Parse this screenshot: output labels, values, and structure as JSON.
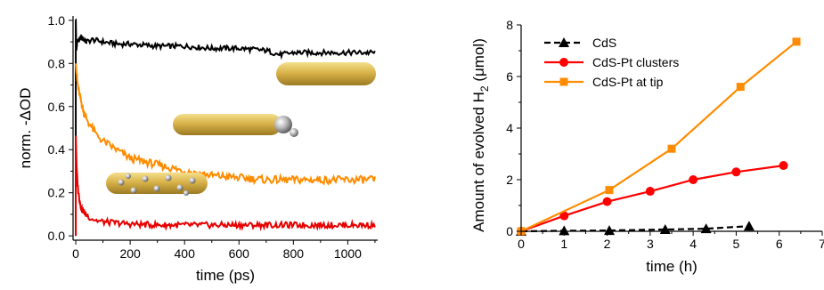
{
  "chart_data": [
    {
      "type": "line",
      "xlabel": "time (ps)",
      "ylabel": "norm. -ΔOD",
      "xlim": [
        -10,
        1110
      ],
      "ylim": [
        -0.02,
        1.02
      ],
      "xticks": [
        "0",
        "200",
        "400",
        "600",
        "800",
        "1000"
      ],
      "yticks": [
        "0.0",
        "0.2",
        "0.4",
        "0.6",
        "0.8",
        "1.0"
      ],
      "series": [
        {
          "color": "#000000",
          "x": [
            0,
            2,
            5,
            10,
            20,
            40,
            60,
            100,
            150,
            200,
            300,
            400,
            500,
            600,
            700,
            750,
            800,
            850,
            900,
            1000,
            1100
          ],
          "y": [
            1.0,
            0.86,
            0.9,
            0.91,
            0.92,
            0.9,
            0.91,
            0.9,
            0.89,
            0.89,
            0.88,
            0.88,
            0.87,
            0.87,
            0.86,
            0.84,
            0.85,
            0.85,
            0.85,
            0.85,
            0.85
          ]
        },
        {
          "color": "#ff8c00",
          "x": [
            0,
            5,
            10,
            20,
            30,
            50,
            75,
            100,
            150,
            200,
            300,
            400,
            500,
            600,
            700,
            800,
            900,
            1000,
            1100
          ],
          "y": [
            0.8,
            0.72,
            0.68,
            0.62,
            0.57,
            0.52,
            0.47,
            0.44,
            0.4,
            0.36,
            0.33,
            0.3,
            0.28,
            0.27,
            0.26,
            0.26,
            0.26,
            0.26,
            0.26
          ]
        },
        {
          "color": "#e60000",
          "x": [
            0,
            3,
            6,
            10,
            15,
            20,
            30,
            40,
            60,
            80,
            100,
            150,
            200,
            300,
            400,
            500,
            600,
            700,
            800,
            900,
            1000,
            1100
          ],
          "y": [
            0.46,
            0.32,
            0.25,
            0.2,
            0.16,
            0.13,
            0.11,
            0.095,
            0.08,
            0.07,
            0.065,
            0.06,
            0.055,
            0.05,
            0.05,
            0.05,
            0.05,
            0.05,
            0.05,
            0.05,
            0.05,
            0.05
          ]
        }
      ]
    },
    {
      "type": "line",
      "xlabel": "time (h)",
      "ylabel": "Amount of evolved H",
      "ylabel_sub": "2",
      "ylabel_unit": " (μmol)",
      "xlim": [
        0,
        7
      ],
      "ylim": [
        0,
        8
      ],
      "xticks": [
        "0",
        "1",
        "2",
        "3",
        "4",
        "5",
        "6",
        "7"
      ],
      "yticks": [
        "0",
        "2",
        "4",
        "6",
        "8"
      ],
      "legend_position": "top-left",
      "series": [
        {
          "name": "CdS",
          "color": "#000000",
          "marker": "triangle",
          "dash": true,
          "x": [
            0,
            1.0,
            2.05,
            3.35,
            4.3,
            5.3
          ],
          "y": [
            0,
            0.02,
            0.03,
            0.07,
            0.1,
            0.2
          ]
        },
        {
          "name": "CdS-Pt clusters",
          "color": "#ff0000",
          "marker": "circle",
          "x": [
            0,
            1.0,
            2.0,
            3.0,
            4.0,
            5.0,
            6.1
          ],
          "y": [
            0,
            0.6,
            1.15,
            1.55,
            2.0,
            2.3,
            2.55
          ]
        },
        {
          "name": "CdS-Pt at tip",
          "color": "#ff8c00",
          "marker": "square",
          "x": [
            0,
            2.05,
            3.5,
            5.1,
            6.4
          ],
          "y": [
            0,
            1.6,
            3.2,
            5.6,
            7.35
          ]
        }
      ]
    }
  ]
}
